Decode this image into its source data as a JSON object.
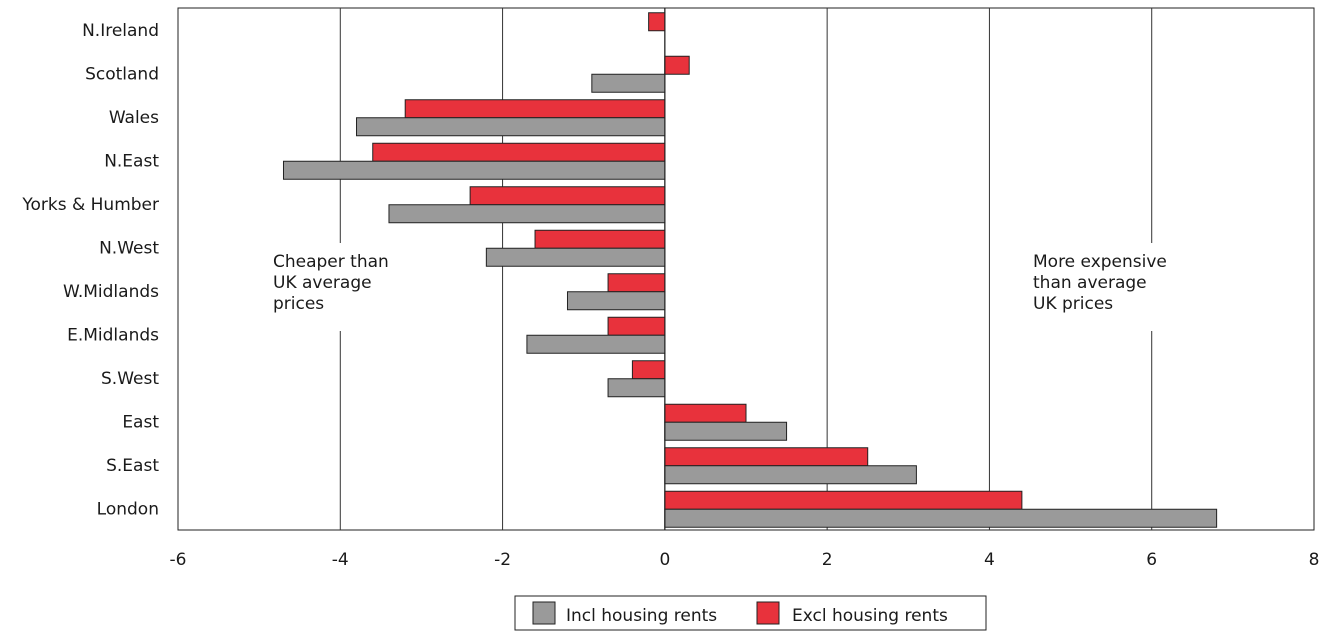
{
  "chart_data": {
    "type": "bar",
    "orientation": "horizontal",
    "categories": [
      "N.Ireland",
      "Scotland",
      "Wales",
      "N.East",
      "Yorks & Humber",
      "N.West",
      "W.Midlands",
      "E.Midlands",
      "S.West",
      "East",
      "S.East",
      "London"
    ],
    "series": [
      {
        "name": "Excl housing rents",
        "color": "#e8323c",
        "values": [
          -0.2,
          0.3,
          -3.2,
          -3.6,
          -2.4,
          -1.6,
          -0.7,
          -0.7,
          -0.4,
          1.0,
          2.5,
          4.4
        ]
      },
      {
        "name": "Incl housing rents",
        "color": "#9a9a9a",
        "values": [
          null,
          -0.9,
          -3.8,
          -4.7,
          -3.4,
          -2.2,
          -1.2,
          -1.7,
          -0.7,
          1.5,
          3.1,
          6.8
        ]
      }
    ],
    "xlim": [
      -6,
      8
    ],
    "xticks": [
      -6,
      -4,
      -2,
      0,
      2,
      4,
      6,
      8
    ],
    "xtick_labels": [
      "-6",
      "-4",
      "-2",
      "0",
      "2",
      "4",
      "6",
      "8"
    ],
    "grid": "vertical",
    "legend_position": "bottom-center",
    "legend": [
      "Incl housing rents",
      "Excl housing rents"
    ],
    "annotations": [
      {
        "side": "left",
        "lines": [
          "Cheaper than",
          "UK average",
          "prices"
        ]
      },
      {
        "side": "right",
        "lines": [
          "More expensive",
          "than average",
          "UK prices"
        ]
      }
    ],
    "title": "",
    "xlabel": "",
    "ylabel": ""
  },
  "legend": {
    "incl_label": "Incl housing rents",
    "excl_label": "Excl housing rents"
  }
}
